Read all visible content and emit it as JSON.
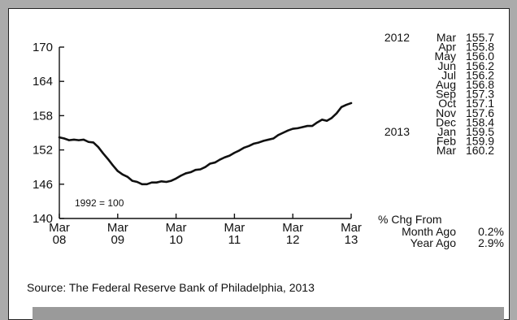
{
  "chart_data": {
    "type": "line",
    "base_label": "1992 = 100",
    "ylim": [
      140,
      170
    ],
    "yticks": [
      140,
      146,
      152,
      158,
      164,
      170
    ],
    "x_ticks": [
      {
        "month": "Mar",
        "year": "08"
      },
      {
        "month": "Mar",
        "year": "09"
      },
      {
        "month": "Mar",
        "year": "10"
      },
      {
        "month": "Mar",
        "year": "11"
      },
      {
        "month": "Mar",
        "year": "12"
      },
      {
        "month": "Mar",
        "year": "13"
      }
    ],
    "x": [
      "2008-03",
      "2008-04",
      "2008-05",
      "2008-06",
      "2008-07",
      "2008-08",
      "2008-09",
      "2008-10",
      "2008-11",
      "2008-12",
      "2009-01",
      "2009-02",
      "2009-03",
      "2009-04",
      "2009-05",
      "2009-06",
      "2009-07",
      "2009-08",
      "2009-09",
      "2009-10",
      "2009-11",
      "2009-12",
      "2010-01",
      "2010-02",
      "2010-03",
      "2010-04",
      "2010-05",
      "2010-06",
      "2010-07",
      "2010-08",
      "2010-09",
      "2010-10",
      "2010-11",
      "2010-12",
      "2011-01",
      "2011-02",
      "2011-03",
      "2011-04",
      "2011-05",
      "2011-06",
      "2011-07",
      "2011-08",
      "2011-09",
      "2011-10",
      "2011-11",
      "2011-12",
      "2012-01",
      "2012-02",
      "2012-03",
      "2012-04",
      "2012-05",
      "2012-06",
      "2012-07",
      "2012-08",
      "2012-09",
      "2012-10",
      "2012-11",
      "2012-12",
      "2013-01",
      "2013-02",
      "2013-03"
    ],
    "values": [
      154.2,
      154.0,
      153.7,
      153.8,
      153.7,
      153.8,
      153.4,
      153.3,
      152.5,
      151.4,
      150.4,
      149.3,
      148.3,
      147.7,
      147.3,
      146.6,
      146.4,
      146.0,
      146.0,
      146.3,
      146.3,
      146.5,
      146.4,
      146.6,
      147.0,
      147.5,
      147.9,
      148.1,
      148.5,
      148.6,
      149.0,
      149.6,
      149.8,
      150.3,
      150.7,
      151.0,
      151.5,
      151.9,
      152.4,
      152.7,
      153.1,
      153.3,
      153.6,
      153.8,
      154.0,
      154.6,
      155.0,
      155.4,
      155.7,
      155.8,
      156.0,
      156.2,
      156.2,
      156.8,
      157.3,
      157.1,
      157.6,
      158.4,
      159.5,
      159.9,
      160.2
    ],
    "recent_readings": [
      {
        "year": "2012",
        "month": "Mar",
        "value": "155.7"
      },
      {
        "year": "",
        "month": "Apr",
        "value": "155.8"
      },
      {
        "year": "",
        "month": "May",
        "value": "156.0"
      },
      {
        "year": "",
        "month": "Jun",
        "value": "156.2"
      },
      {
        "year": "",
        "month": "Jul",
        "value": "156.2"
      },
      {
        "year": "",
        "month": "Aug",
        "value": "156.8"
      },
      {
        "year": "",
        "month": "Sep",
        "value": "157.3"
      },
      {
        "year": "",
        "month": "Oct",
        "value": "157.1"
      },
      {
        "year": "",
        "month": "Nov",
        "value": "157.6"
      },
      {
        "year": "",
        "month": "Dec",
        "value": "158.4"
      },
      {
        "year": "2013",
        "month": "Jan",
        "value": "159.5"
      },
      {
        "year": "",
        "month": "Feb",
        "value": "159.9"
      },
      {
        "year": "",
        "month": "Mar",
        "value": "160.2"
      }
    ],
    "pct_change": {
      "heading": "% Chg From",
      "rows": [
        {
          "label": "Month Ago",
          "value": "0.2%"
        },
        {
          "label": "Year Ago",
          "value": "2.9%"
        }
      ]
    },
    "grid": false,
    "line_color": "#111111"
  },
  "source": "Source:  The Federal Reserve Bank of Philadelphia, 2013"
}
